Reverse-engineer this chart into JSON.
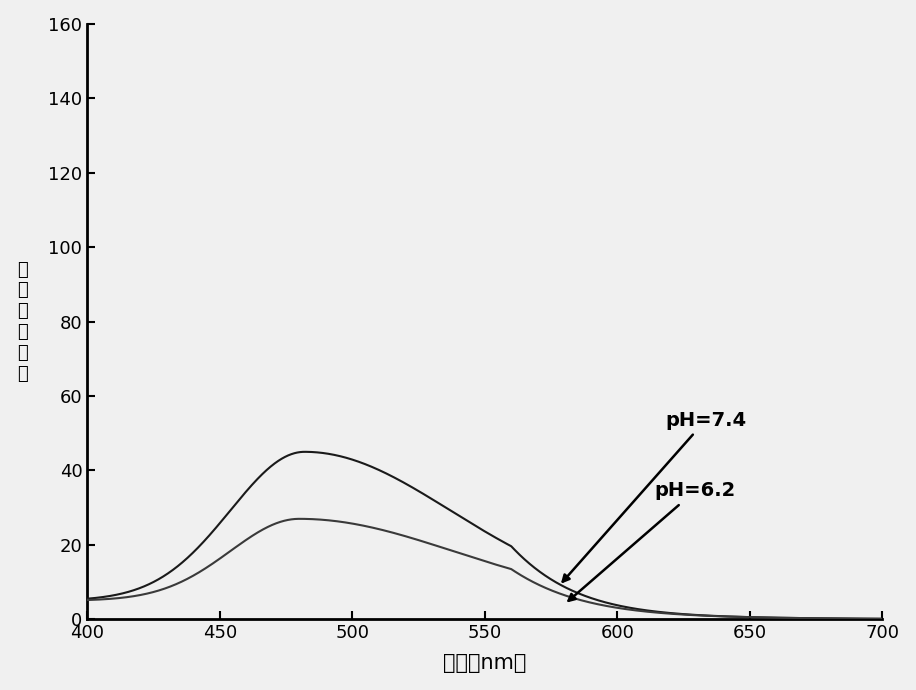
{
  "xlabel": "波长（nm）",
  "ylabel_chars": [
    "相",
    "对",
    "荔",
    "光",
    "强",
    "度"
  ],
  "xlim": [
    400,
    700
  ],
  "ylim": [
    0,
    160
  ],
  "xticks": [
    400,
    450,
    500,
    550,
    600,
    650,
    700
  ],
  "yticks": [
    0,
    20,
    40,
    60,
    80,
    100,
    120,
    140,
    160
  ],
  "background_color": "#f0f0f0",
  "label_ph74": "pH=7.4",
  "label_ph62": "pH=6.2",
  "figsize": [
    9.16,
    6.9
  ],
  "dpi": 100
}
